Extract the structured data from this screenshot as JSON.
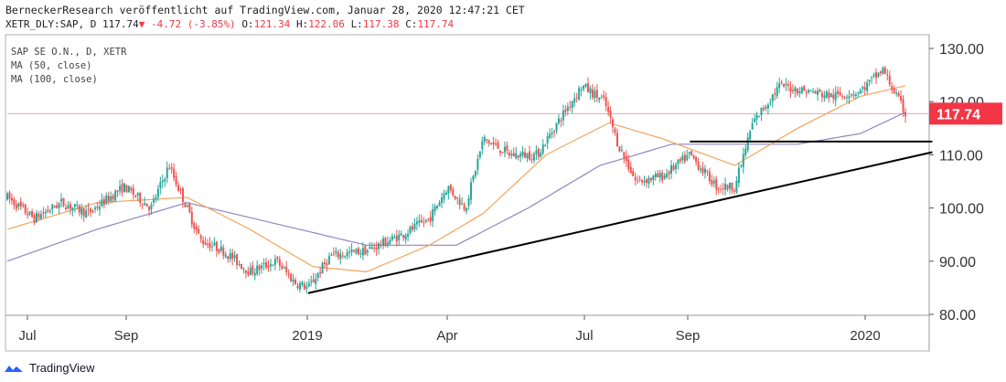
{
  "header": {
    "publisher_line": "BerneckerResearch veröffentlicht auf TradingView.com, Januar 28, 2020 12:47:21 CET",
    "symbol": "XETR_DLY:SAP, D",
    "last": "117.74",
    "change_icon": "triangle-down",
    "change": "-4.72 (-3.85%)",
    "open_label": "O:",
    "open": "121.34",
    "high_label": "H:",
    "high": "122.06",
    "low_label": "L:",
    "low": "117.38",
    "close_label": "C:",
    "close": "117.74"
  },
  "legend": {
    "series": "SAP SE O.N., D, XETR",
    "ma50": "MA (50, close)",
    "ma100": "MA (100, close)"
  },
  "footer": {
    "brand": "TradingView",
    "logo_icon": "tradingview-logo"
  },
  "colors": {
    "up": "#26a69a",
    "down": "#ef5350",
    "ma50": "#f4a55a",
    "ma100": "#9085c4",
    "price_tag": "#f23645",
    "trendline": "#000000"
  },
  "chart_data": {
    "type": "candlestick",
    "interval": "daily",
    "ylim": [
      80,
      130
    ],
    "yticks": [
      "130.00",
      "120.00",
      "110.00",
      "100.00",
      "90.00",
      "80.00"
    ],
    "xticks": [
      "Jul",
      "Sep",
      "2019",
      "Apr",
      "Jul",
      "Sep",
      "2020"
    ],
    "last_price_label": "117.74",
    "grid": false,
    "approx_close_path": [
      {
        "t": 0,
        "close": 102
      },
      {
        "t": 0.03,
        "close": 98
      },
      {
        "t": 0.06,
        "close": 101
      },
      {
        "t": 0.09,
        "close": 99
      },
      {
        "t": 0.13,
        "close": 104
      },
      {
        "t": 0.16,
        "close": 100
      },
      {
        "t": 0.18,
        "close": 108
      },
      {
        "t": 0.2,
        "close": 100
      },
      {
        "t": 0.215,
        "close": 94
      },
      {
        "t": 0.24,
        "close": 92
      },
      {
        "t": 0.27,
        "close": 88
      },
      {
        "t": 0.3,
        "close": 90
      },
      {
        "t": 0.32,
        "close": 86
      },
      {
        "t": 0.335,
        "close": 85
      },
      {
        "t": 0.36,
        "close": 91
      },
      {
        "t": 0.4,
        "close": 92
      },
      {
        "t": 0.44,
        "close": 95
      },
      {
        "t": 0.47,
        "close": 98
      },
      {
        "t": 0.49,
        "close": 104
      },
      {
        "t": 0.51,
        "close": 100
      },
      {
        "t": 0.53,
        "close": 113
      },
      {
        "t": 0.56,
        "close": 110
      },
      {
        "t": 0.59,
        "close": 110
      },
      {
        "t": 0.62,
        "close": 118
      },
      {
        "t": 0.64,
        "close": 123
      },
      {
        "t": 0.665,
        "close": 120
      },
      {
        "t": 0.68,
        "close": 112
      },
      {
        "t": 0.7,
        "close": 105
      },
      {
        "t": 0.73,
        "close": 106
      },
      {
        "t": 0.76,
        "close": 110
      },
      {
        "t": 0.79,
        "close": 104
      },
      {
        "t": 0.81,
        "close": 104
      },
      {
        "t": 0.83,
        "close": 116
      },
      {
        "t": 0.86,
        "close": 123
      },
      {
        "t": 0.89,
        "close": 122
      },
      {
        "t": 0.92,
        "close": 121
      },
      {
        "t": 0.95,
        "close": 122
      },
      {
        "t": 0.975,
        "close": 126
      },
      {
        "t": 1.0,
        "close": 117.74
      }
    ],
    "ma50_path": [
      {
        "t": 0,
        "value": 96
      },
      {
        "t": 0.1,
        "value": 101
      },
      {
        "t": 0.2,
        "value": 102
      },
      {
        "t": 0.27,
        "value": 96
      },
      {
        "t": 0.34,
        "value": 89
      },
      {
        "t": 0.4,
        "value": 88
      },
      {
        "t": 0.47,
        "value": 93
      },
      {
        "t": 0.53,
        "value": 99
      },
      {
        "t": 0.6,
        "value": 110
      },
      {
        "t": 0.67,
        "value": 116
      },
      {
        "t": 0.73,
        "value": 113
      },
      {
        "t": 0.81,
        "value": 108
      },
      {
        "t": 0.88,
        "value": 115
      },
      {
        "t": 0.95,
        "value": 121
      },
      {
        "t": 1.0,
        "value": 123
      }
    ],
    "ma100_path": [
      {
        "t": 0,
        "value": 90
      },
      {
        "t": 0.1,
        "value": 96
      },
      {
        "t": 0.2,
        "value": 101
      },
      {
        "t": 0.3,
        "value": 97
      },
      {
        "t": 0.4,
        "value": 93
      },
      {
        "t": 0.5,
        "value": 93
      },
      {
        "t": 0.58,
        "value": 100
      },
      {
        "t": 0.66,
        "value": 108
      },
      {
        "t": 0.74,
        "value": 112
      },
      {
        "t": 0.8,
        "value": 112
      },
      {
        "t": 0.88,
        "value": 112
      },
      {
        "t": 0.95,
        "value": 114
      },
      {
        "t": 1.0,
        "value": 118
      }
    ],
    "trendlines": [
      {
        "name": "rising-support",
        "from": {
          "t": 0.335,
          "price": 84
        },
        "to": {
          "t": 1.03,
          "price": 110.5
        }
      },
      {
        "name": "horizontal-resistance",
        "from": {
          "t": 0.76,
          "price": 112.5
        },
        "to": {
          "t": 1.03,
          "price": 112.5
        }
      }
    ],
    "price_line": 117.74
  }
}
